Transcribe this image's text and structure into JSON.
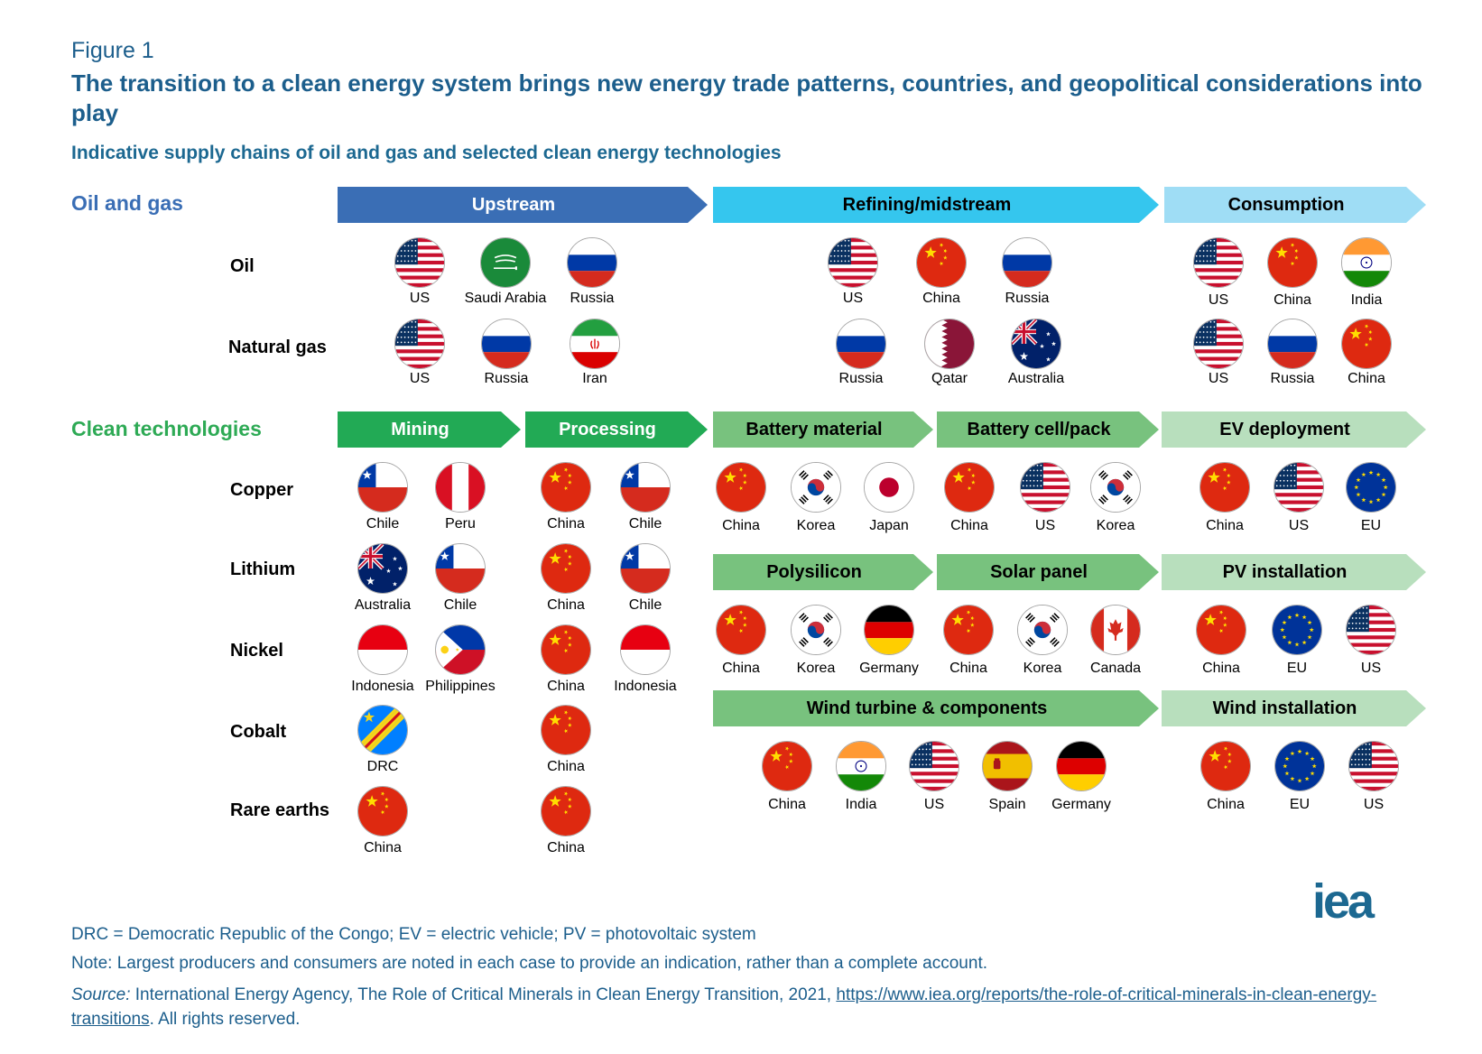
{
  "figure_label": "Figure 1",
  "title": "The transition to a clean energy system brings new energy trade patterns, countries, and geopolitical considerations into play",
  "subtitle": "Indicative supply chains of oil and gas and selected clean energy technologies",
  "sections": {
    "oil_gas": "Oil and gas",
    "clean": "Clean technologies"
  },
  "colors": {
    "dark_blue": "#3a6eb5",
    "cyan": "#35c6ee",
    "light_blue": "#9fddf5",
    "green": "#22aa55",
    "mid_green": "#78c27e",
    "light_green": "#b8dfbd",
    "text_blue": "#1c5e8c",
    "oil_gas_label": "#3a6eb5",
    "clean_label": "#2eaa55"
  },
  "rows": {
    "oil": "Oil",
    "natural_gas": "Natural gas",
    "copper": "Copper",
    "lithium": "Lithium",
    "nickel": "Nickel",
    "cobalt": "Cobalt",
    "rare_earths": "Rare earths"
  },
  "stages": {
    "upstream": "Upstream",
    "refining": "Refining/midstream",
    "consumption": "Consumption",
    "mining": "Mining",
    "processing": "Processing",
    "battery_material": "Battery material",
    "battery_cell": "Battery cell/pack",
    "ev": "EV deployment",
    "polysilicon": "Polysilicon",
    "solar_panel": "Solar panel",
    "pv_install": "PV installation",
    "wind_turbine": "Wind turbine & components",
    "wind_install": "Wind installation"
  },
  "flag_groups": [
    {
      "id": "oil-upstream",
      "countries": [
        {
          "flag": "us",
          "name": "US"
        },
        {
          "flag": "saudi",
          "name": "Saudi Arabia"
        },
        {
          "flag": "russia",
          "name": "Russia"
        }
      ]
    },
    {
      "id": "oil-refining",
      "countries": [
        {
          "flag": "us",
          "name": "US"
        },
        {
          "flag": "china",
          "name": "China"
        },
        {
          "flag": "russia",
          "name": "Russia"
        }
      ]
    },
    {
      "id": "oil-consumption",
      "countries": [
        {
          "flag": "us",
          "name": "US"
        },
        {
          "flag": "china",
          "name": "China"
        },
        {
          "flag": "india",
          "name": "India"
        }
      ]
    },
    {
      "id": "gas-upstream",
      "countries": [
        {
          "flag": "us",
          "name": "US"
        },
        {
          "flag": "russia",
          "name": "Russia"
        },
        {
          "flag": "iran",
          "name": "Iran"
        }
      ]
    },
    {
      "id": "gas-midstream",
      "countries": [
        {
          "flag": "russia",
          "name": "Russia"
        },
        {
          "flag": "qatar",
          "name": "Qatar"
        },
        {
          "flag": "australia",
          "name": "Australia"
        }
      ]
    },
    {
      "id": "gas-consumption",
      "countries": [
        {
          "flag": "us",
          "name": "US"
        },
        {
          "flag": "russia",
          "name": "Russia"
        },
        {
          "flag": "china",
          "name": "China"
        }
      ]
    },
    {
      "id": "copper-mining",
      "countries": [
        {
          "flag": "chile",
          "name": "Chile"
        },
        {
          "flag": "peru",
          "name": "Peru"
        }
      ]
    },
    {
      "id": "copper-processing",
      "countries": [
        {
          "flag": "china",
          "name": "China"
        },
        {
          "flag": "chile",
          "name": "Chile"
        }
      ]
    },
    {
      "id": "lithium-mining",
      "countries": [
        {
          "flag": "australia",
          "name": "Australia"
        },
        {
          "flag": "chile",
          "name": "Chile"
        }
      ]
    },
    {
      "id": "lithium-processing",
      "countries": [
        {
          "flag": "china",
          "name": "China"
        },
        {
          "flag": "chile",
          "name": "Chile"
        }
      ]
    },
    {
      "id": "nickel-mining",
      "countries": [
        {
          "flag": "indonesia",
          "name": "Indonesia"
        },
        {
          "flag": "philippines",
          "name": "Philippines"
        }
      ]
    },
    {
      "id": "nickel-processing",
      "countries": [
        {
          "flag": "china",
          "name": "China"
        },
        {
          "flag": "indonesia",
          "name": "Indonesia"
        }
      ]
    },
    {
      "id": "cobalt-mining",
      "countries": [
        {
          "flag": "drc",
          "name": "DRC"
        }
      ]
    },
    {
      "id": "cobalt-processing",
      "countries": [
        {
          "flag": "china",
          "name": "China"
        }
      ]
    },
    {
      "id": "rare-mining",
      "countries": [
        {
          "flag": "china",
          "name": "China"
        }
      ]
    },
    {
      "id": "rare-processing",
      "countries": [
        {
          "flag": "china",
          "name": "China"
        }
      ]
    },
    {
      "id": "battery-material",
      "countries": [
        {
          "flag": "china",
          "name": "China"
        },
        {
          "flag": "korea",
          "name": "Korea"
        },
        {
          "flag": "japan",
          "name": "Japan"
        }
      ]
    },
    {
      "id": "battery-cell",
      "countries": [
        {
          "flag": "china",
          "name": "China"
        },
        {
          "flag": "us",
          "name": "US"
        },
        {
          "flag": "korea",
          "name": "Korea"
        }
      ]
    },
    {
      "id": "ev-deployment",
      "countries": [
        {
          "flag": "china",
          "name": "China"
        },
        {
          "flag": "us",
          "name": "US"
        },
        {
          "flag": "eu",
          "name": "EU"
        }
      ]
    },
    {
      "id": "polysilicon",
      "countries": [
        {
          "flag": "china",
          "name": "China"
        },
        {
          "flag": "korea",
          "name": "Korea"
        },
        {
          "flag": "germany",
          "name": "Germany"
        }
      ]
    },
    {
      "id": "solar-panel",
      "countries": [
        {
          "flag": "china",
          "name": "China"
        },
        {
          "flag": "korea",
          "name": "Korea"
        },
        {
          "flag": "canada",
          "name": "Canada"
        }
      ]
    },
    {
      "id": "pv-installation",
      "countries": [
        {
          "flag": "china",
          "name": "China"
        },
        {
          "flag": "eu",
          "name": "EU"
        },
        {
          "flag": "us",
          "name": "US"
        }
      ]
    },
    {
      "id": "wind-turbine",
      "countries": [
        {
          "flag": "china",
          "name": "China"
        },
        {
          "flag": "india",
          "name": "India"
        },
        {
          "flag": "us",
          "name": "US"
        },
        {
          "flag": "spain",
          "name": "Spain"
        },
        {
          "flag": "germany",
          "name": "Germany"
        }
      ]
    },
    {
      "id": "wind-installation",
      "countries": [
        {
          "flag": "china",
          "name": "China"
        },
        {
          "flag": "eu",
          "name": "EU"
        },
        {
          "flag": "us",
          "name": "US"
        }
      ]
    }
  ],
  "logo": "iea",
  "footnotes": {
    "abbrev": "DRC = Democratic Republic of the Congo; EV = electric vehicle; PV = photovoltaic system",
    "note": "Note: Largest producers and consumers are noted in each case to provide an indication, rather than a complete account.",
    "source_label": "Source:",
    "source_text": " International Energy Agency, The Role of Critical Minerals in Clean Energy Transition, 2021, ",
    "source_link": "https://www.iea.org/reports/the-role-of-critical-minerals-in-clean-energy-transitions",
    "source_end": ". All rights reserved."
  }
}
